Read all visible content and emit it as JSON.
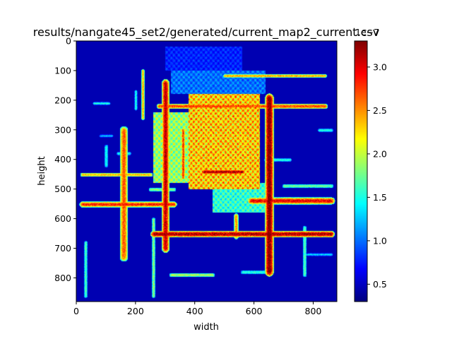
{
  "chart_data": {
    "type": "heatmap",
    "title": "results/nangate45_set2/generated/current_map2_current.csv",
    "xlabel": "width",
    "ylabel": "height",
    "xlim": [
      0,
      880
    ],
    "ylim": [
      880,
      0
    ],
    "x_ticks": [
      0,
      200,
      400,
      600,
      800
    ],
    "y_ticks": [
      0,
      100,
      200,
      300,
      400,
      500,
      600,
      700,
      800
    ],
    "colormap": "jet",
    "colorbar": {
      "range": [
        0.3,
        3.3
      ],
      "ticks": [
        0.5,
        1.0,
        1.5,
        2.0,
        2.5,
        3.0
      ],
      "tick_labels": [
        "0.5",
        "1.0",
        "1.5",
        "2.0",
        "2.5",
        "3.0"
      ],
      "offset_text": "1e−7"
    },
    "background_value": 0.45,
    "regions": [
      {
        "x": [
          380,
          620
        ],
        "y": [
          180,
          500
        ],
        "v": 3.0
      },
      {
        "x": [
          260,
          380
        ],
        "y": [
          240,
          480
        ],
        "v": 2.4
      },
      {
        "x": [
          320,
          640
        ],
        "y": [
          100,
          180
        ],
        "v": 1.3
      },
      {
        "x": [
          300,
          560
        ],
        "y": [
          20,
          100
        ],
        "v": 1.0
      },
      {
        "x": [
          460,
          640
        ],
        "y": [
          480,
          580
        ],
        "v": 2.0
      }
    ],
    "segments": [
      {
        "x1": 260,
        "y1": 650,
        "x2": 860,
        "y2": 650,
        "w": 22,
        "v": 3.0
      },
      {
        "x1": 20,
        "y1": 550,
        "x2": 330,
        "y2": 550,
        "w": 20,
        "v": 2.7
      },
      {
        "x1": 590,
        "y1": 540,
        "x2": 860,
        "y2": 540,
        "w": 24,
        "v": 2.8
      },
      {
        "x1": 20,
        "y1": 450,
        "x2": 250,
        "y2": 450,
        "w": 14,
        "v": 2.3
      },
      {
        "x1": 280,
        "y1": 220,
        "x2": 840,
        "y2": 220,
        "w": 18,
        "v": 2.6
      },
      {
        "x1": 500,
        "y1": 118,
        "x2": 840,
        "y2": 118,
        "w": 12,
        "v": 2.4
      },
      {
        "x1": 160,
        "y1": 300,
        "x2": 160,
        "y2": 730,
        "w": 28,
        "v": 2.5
      },
      {
        "x1": 300,
        "y1": 140,
        "x2": 300,
        "y2": 700,
        "w": 26,
        "v": 2.9
      },
      {
        "x1": 650,
        "y1": 190,
        "x2": 650,
        "y2": 780,
        "w": 30,
        "v": 3.1
      },
      {
        "x1": 225,
        "y1": 100,
        "x2": 225,
        "y2": 260,
        "w": 12,
        "v": 2.3
      },
      {
        "x1": 770,
        "y1": 630,
        "x2": 770,
        "y2": 790,
        "w": 14,
        "v": 1.6
      },
      {
        "x1": 260,
        "y1": 600,
        "x2": 260,
        "y2": 860,
        "w": 12,
        "v": 1.8
      },
      {
        "x1": 30,
        "y1": 680,
        "x2": 30,
        "y2": 860,
        "w": 12,
        "v": 1.6
      },
      {
        "x1": 60,
        "y1": 210,
        "x2": 110,
        "y2": 210,
        "w": 10,
        "v": 1.5
      },
      {
        "x1": 700,
        "y1": 490,
        "x2": 860,
        "y2": 490,
        "w": 14,
        "v": 1.7
      },
      {
        "x1": 320,
        "y1": 790,
        "x2": 460,
        "y2": 790,
        "w": 14,
        "v": 1.9
      },
      {
        "x1": 560,
        "y1": 780,
        "x2": 640,
        "y2": 780,
        "w": 14,
        "v": 1.5
      },
      {
        "x1": 100,
        "y1": 355,
        "x2": 100,
        "y2": 420,
        "w": 14,
        "v": 1.4
      },
      {
        "x1": 250,
        "y1": 500,
        "x2": 330,
        "y2": 500,
        "w": 14,
        "v": 1.8
      },
      {
        "x1": 640,
        "y1": 400,
        "x2": 720,
        "y2": 400,
        "w": 12,
        "v": 1.5
      },
      {
        "x1": 540,
        "y1": 590,
        "x2": 540,
        "y2": 660,
        "w": 16,
        "v": 2.4
      },
      {
        "x1": 430,
        "y1": 440,
        "x2": 560,
        "y2": 440,
        "w": 18,
        "v": 3.0
      },
      {
        "x1": 140,
        "y1": 380,
        "x2": 180,
        "y2": 380,
        "w": 12,
        "v": 1.4
      },
      {
        "x1": 200,
        "y1": 170,
        "x2": 200,
        "y2": 230,
        "w": 10,
        "v": 1.5
      },
      {
        "x1": 360,
        "y1": 300,
        "x2": 360,
        "y2": 460,
        "w": 14,
        "v": 2.7
      },
      {
        "x1": 80,
        "y1": 320,
        "x2": 120,
        "y2": 320,
        "w": 10,
        "v": 1.2
      },
      {
        "x1": 820,
        "y1": 300,
        "x2": 860,
        "y2": 300,
        "w": 12,
        "v": 1.5
      },
      {
        "x1": 780,
        "y1": 720,
        "x2": 860,
        "y2": 720,
        "w": 10,
        "v": 1.3
      }
    ]
  }
}
